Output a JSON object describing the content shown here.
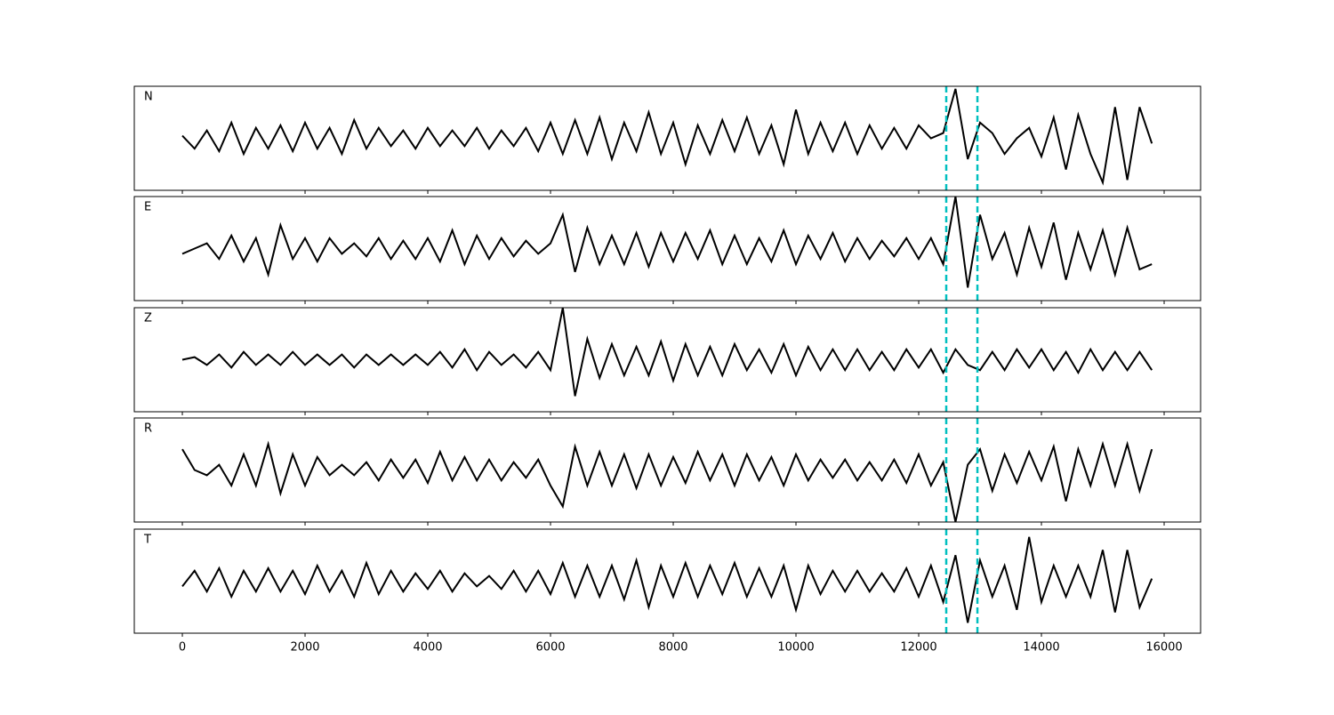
{
  "chart_data": {
    "type": "line",
    "color": "#000000",
    "x": [
      0,
      200,
      400,
      600,
      800,
      1000,
      1200,
      1400,
      1600,
      1800,
      2000,
      2200,
      2400,
      2600,
      2800,
      3000,
      3200,
      3400,
      3600,
      3800,
      4000,
      4200,
      4400,
      4600,
      4800,
      5000,
      5200,
      5400,
      5600,
      5800,
      6000,
      6200,
      6400,
      6600,
      6800,
      7000,
      7200,
      7400,
      7600,
      7800,
      8000,
      8200,
      8400,
      8600,
      8800,
      9000,
      9200,
      9400,
      9600,
      9800,
      10000,
      10200,
      10400,
      10600,
      10800,
      11000,
      11200,
      11400,
      11600,
      11800,
      12000,
      12200,
      12400,
      12600,
      12800,
      13000,
      13200,
      13400,
      13600,
      13800,
      14000,
      14200,
      14400,
      14600,
      14800,
      15000,
      15200,
      15400,
      15600,
      15800
    ],
    "xlim": [
      -783,
      16594
    ],
    "xticks": [
      0,
      2000,
      4000,
      6000,
      8000,
      10000,
      12000,
      14000,
      16000
    ],
    "vlines": {
      "values": [
        12449,
        12957
      ],
      "color": "#00bfbf"
    },
    "panels": [
      {
        "label": "N",
        "ylim": [
          -1,
          1
        ],
        "values": [
          0.05,
          -0.2,
          0.15,
          -0.25,
          0.3,
          -0.3,
          0.2,
          -0.2,
          0.25,
          -0.25,
          0.3,
          -0.2,
          0.2,
          -0.3,
          0.35,
          -0.2,
          0.2,
          -0.15,
          0.15,
          -0.2,
          0.2,
          -0.15,
          0.15,
          -0.15,
          0.2,
          -0.2,
          0.15,
          -0.15,
          0.2,
          -0.25,
          0.3,
          -0.3,
          0.35,
          -0.3,
          0.4,
          -0.4,
          0.3,
          -0.25,
          0.5,
          -0.3,
          0.3,
          -0.5,
          0.25,
          -0.3,
          0.35,
          -0.25,
          0.4,
          -0.3,
          0.25,
          -0.5,
          0.55,
          -0.3,
          0.3,
          -0.25,
          0.3,
          -0.3,
          0.25,
          -0.2,
          0.2,
          -0.2,
          0.25,
          0.0,
          0.1,
          0.95,
          -0.4,
          0.3,
          0.1,
          -0.3,
          0.0,
          0.2,
          -0.35,
          0.4,
          -0.6,
          0.45,
          -0.3,
          -0.85,
          0.6,
          -0.8,
          0.6,
          -0.1
        ]
      },
      {
        "label": "E",
        "ylim": [
          -1,
          1
        ],
        "values": [
          -0.1,
          0.0,
          0.1,
          -0.2,
          0.25,
          -0.25,
          0.2,
          -0.5,
          0.45,
          -0.2,
          0.2,
          -0.25,
          0.2,
          -0.1,
          0.1,
          -0.15,
          0.2,
          -0.2,
          0.15,
          -0.2,
          0.2,
          -0.25,
          0.35,
          -0.3,
          0.25,
          -0.2,
          0.2,
          -0.15,
          0.15,
          -0.1,
          0.1,
          0.65,
          -0.45,
          0.4,
          -0.3,
          0.25,
          -0.3,
          0.3,
          -0.35,
          0.3,
          -0.25,
          0.3,
          -0.2,
          0.35,
          -0.3,
          0.25,
          -0.3,
          0.2,
          -0.25,
          0.35,
          -0.3,
          0.25,
          -0.2,
          0.3,
          -0.25,
          0.2,
          -0.2,
          0.15,
          -0.15,
          0.2,
          -0.2,
          0.2,
          -0.3,
          1.0,
          -0.75,
          0.65,
          -0.2,
          0.3,
          -0.5,
          0.4,
          -0.35,
          0.5,
          -0.6,
          0.3,
          -0.4,
          0.35,
          -0.5,
          0.4,
          -0.4,
          -0.3
        ]
      },
      {
        "label": "Z",
        "ylim": [
          -1,
          1
        ],
        "values": [
          0.0,
          0.05,
          -0.1,
          0.1,
          -0.15,
          0.15,
          -0.1,
          0.1,
          -0.1,
          0.15,
          -0.1,
          0.1,
          -0.1,
          0.1,
          -0.15,
          0.1,
          -0.1,
          0.1,
          -0.1,
          0.1,
          -0.1,
          0.15,
          -0.15,
          0.2,
          -0.2,
          0.15,
          -0.1,
          0.1,
          -0.15,
          0.15,
          -0.2,
          1.0,
          -0.7,
          0.4,
          -0.35,
          0.3,
          -0.3,
          0.25,
          -0.3,
          0.35,
          -0.4,
          0.3,
          -0.3,
          0.25,
          -0.3,
          0.3,
          -0.2,
          0.2,
          -0.25,
          0.3,
          -0.3,
          0.25,
          -0.2,
          0.2,
          -0.2,
          0.2,
          -0.2,
          0.15,
          -0.2,
          0.2,
          -0.15,
          0.2,
          -0.25,
          0.2,
          -0.1,
          -0.2,
          0.15,
          -0.2,
          0.2,
          -0.15,
          0.2,
          -0.2,
          0.15,
          -0.25,
          0.2,
          -0.2,
          0.15,
          -0.2,
          0.15,
          -0.2
        ]
      },
      {
        "label": "R",
        "ylim": [
          -1,
          1
        ],
        "values": [
          0.4,
          0.0,
          -0.1,
          0.1,
          -0.3,
          0.3,
          -0.3,
          0.5,
          -0.45,
          0.3,
          -0.3,
          0.25,
          -0.1,
          0.1,
          -0.1,
          0.15,
          -0.2,
          0.2,
          -0.15,
          0.2,
          -0.25,
          0.35,
          -0.2,
          0.25,
          -0.2,
          0.2,
          -0.2,
          0.15,
          -0.15,
          0.2,
          -0.3,
          -0.7,
          0.45,
          -0.3,
          0.35,
          -0.3,
          0.3,
          -0.35,
          0.3,
          -0.3,
          0.25,
          -0.25,
          0.35,
          -0.2,
          0.3,
          -0.3,
          0.3,
          -0.2,
          0.25,
          -0.3,
          0.3,
          -0.2,
          0.2,
          -0.15,
          0.2,
          -0.2,
          0.15,
          -0.2,
          0.2,
          -0.25,
          0.3,
          -0.3,
          0.15,
          -1.0,
          0.1,
          0.4,
          -0.4,
          0.3,
          -0.25,
          0.35,
          -0.2,
          0.45,
          -0.6,
          0.4,
          -0.3,
          0.5,
          -0.3,
          0.5,
          -0.4,
          0.4
        ]
      },
      {
        "label": "T",
        "ylim": [
          -1,
          1
        ],
        "values": [
          -0.1,
          0.2,
          -0.2,
          0.25,
          -0.3,
          0.2,
          -0.2,
          0.25,
          -0.2,
          0.2,
          -0.25,
          0.3,
          -0.2,
          0.2,
          -0.3,
          0.35,
          -0.25,
          0.2,
          -0.2,
          0.15,
          -0.15,
          0.2,
          -0.2,
          0.15,
          -0.1,
          0.1,
          -0.15,
          0.2,
          -0.2,
          0.2,
          -0.25,
          0.35,
          -0.3,
          0.3,
          -0.3,
          0.3,
          -0.35,
          0.4,
          -0.5,
          0.3,
          -0.3,
          0.35,
          -0.3,
          0.3,
          -0.25,
          0.35,
          -0.3,
          0.25,
          -0.3,
          0.3,
          -0.55,
          0.3,
          -0.25,
          0.2,
          -0.2,
          0.2,
          -0.2,
          0.15,
          -0.2,
          0.25,
          -0.3,
          0.3,
          -0.4,
          0.5,
          -0.8,
          0.4,
          -0.3,
          0.3,
          -0.55,
          0.85,
          -0.4,
          0.3,
          -0.3,
          0.3,
          -0.3,
          0.6,
          -0.6,
          0.6,
          -0.5,
          0.05
        ]
      }
    ]
  }
}
